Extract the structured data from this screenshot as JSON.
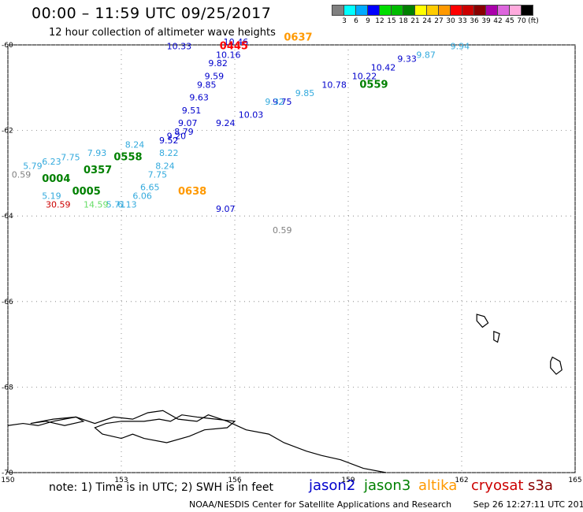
{
  "header": {
    "title": "00:00 – 11:59 UTC 09/25/2017",
    "subtitle": "12 hour collection of altimeter wave heights"
  },
  "legend": {
    "colors": [
      "#808080",
      "#00ffff",
      "#00aaff",
      "#0000ff",
      "#00dd00",
      "#00bb00",
      "#008000",
      "#ffff00",
      "#ffcc00",
      "#ff9900",
      "#ff0000",
      "#cc0000",
      "#880000",
      "#aa00aa",
      "#dd66dd",
      "#ffaadd",
      "#000000"
    ],
    "labels": [
      "3",
      "6",
      "9",
      "12",
      "15",
      "18",
      "21",
      "24",
      "27",
      "30",
      "33",
      "36",
      "39",
      "42",
      "45",
      "70",
      "(ft)"
    ]
  },
  "axes": {
    "lat_labels": [
      "-60",
      "-62",
      "-64",
      "-66",
      "-68",
      "-70"
    ],
    "lon_labels": [
      "150",
      "153",
      "156",
      "159",
      "162",
      "165"
    ]
  },
  "satellite_colors": {
    "jason2": "#0000cc",
    "jason3": "#008000",
    "altika": "#ff9900",
    "cryosat": "#cc0000",
    "s3a": "#880000",
    "cyan": "#33aadd",
    "light_green": "#66dd66",
    "gray": "#808080"
  },
  "observations": [
    {
      "lon": 154.2,
      "lat": -60.1,
      "text": "10.33",
      "color": "#0000cc"
    },
    {
      "lon": 155.7,
      "lat": -60.0,
      "text": "10.46",
      "color": "#0000cc"
    },
    {
      "lon": 155.5,
      "lat": -60.3,
      "text": "10.16",
      "color": "#0000cc"
    },
    {
      "lon": 155.3,
      "lat": -60.5,
      "text": "9.82",
      "color": "#0000cc"
    },
    {
      "lon": 155.2,
      "lat": -60.8,
      "text": "9.59",
      "color": "#0000cc"
    },
    {
      "lon": 155.0,
      "lat": -61.0,
      "text": "9.85",
      "color": "#0000cc"
    },
    {
      "lon": 154.8,
      "lat": -61.3,
      "text": "9.63",
      "color": "#0000cc"
    },
    {
      "lon": 154.6,
      "lat": -61.6,
      "text": "9.51",
      "color": "#0000cc"
    },
    {
      "lon": 154.5,
      "lat": -61.9,
      "text": "9.07",
      "color": "#0000cc"
    },
    {
      "lon": 154.4,
      "lat": -62.1,
      "text": "8.79",
      "color": "#0000cc"
    },
    {
      "lon": 154.2,
      "lat": -62.2,
      "text": "9.20",
      "color": "#0000cc"
    },
    {
      "lon": 154.0,
      "lat": -62.3,
      "text": "9.52",
      "color": "#0000cc"
    },
    {
      "lon": 155.5,
      "lat": -61.9,
      "text": "9.24",
      "color": "#0000cc"
    },
    {
      "lon": 156.1,
      "lat": -61.7,
      "text": "10.03",
      "color": "#0000cc"
    },
    {
      "lon": 157.0,
      "lat": -61.4,
      "text": "9.75",
      "color": "#0000cc"
    },
    {
      "lon": 158.3,
      "lat": -61.0,
      "text": "10.78",
      "color": "#0000cc"
    },
    {
      "lon": 159.1,
      "lat": -60.8,
      "text": "10.22",
      "color": "#0000cc"
    },
    {
      "lon": 159.6,
      "lat": -60.6,
      "text": "10.42",
      "color": "#0000cc"
    },
    {
      "lon": 160.3,
      "lat": -60.4,
      "text": "9.33",
      "color": "#0000cc"
    },
    {
      "lon": 155.5,
      "lat": -63.9,
      "text": "9.07",
      "color": "#0000cc"
    },
    {
      "lon": 154.0,
      "lat": -62.6,
      "text": "8.22",
      "color": "#33aadd"
    },
    {
      "lon": 153.9,
      "lat": -62.9,
      "text": "8.24",
      "color": "#33aadd"
    },
    {
      "lon": 153.7,
      "lat": -63.1,
      "text": "7.75",
      "color": "#33aadd"
    },
    {
      "lon": 153.5,
      "lat": -63.4,
      "text": "6.65",
      "color": "#33aadd"
    },
    {
      "lon": 153.3,
      "lat": -63.6,
      "text": "6.06",
      "color": "#33aadd"
    },
    {
      "lon": 152.9,
      "lat": -63.8,
      "text": "6.13",
      "color": "#33aadd"
    },
    {
      "lon": 152.6,
      "lat": -63.8,
      "text": "5.71",
      "color": "#33aadd"
    },
    {
      "lon": 150.9,
      "lat": -63.6,
      "text": "5.19",
      "color": "#33aadd"
    },
    {
      "lon": 150.4,
      "lat": -62.9,
      "text": "5.79",
      "color": "#33aadd"
    },
    {
      "lon": 150.9,
      "lat": -62.8,
      "text": "6.23",
      "color": "#33aadd"
    },
    {
      "lon": 151.4,
      "lat": -62.7,
      "text": "7.75",
      "color": "#33aadd"
    },
    {
      "lon": 152.1,
      "lat": -62.6,
      "text": "7.93",
      "color": "#33aadd"
    },
    {
      "lon": 153.1,
      "lat": -62.4,
      "text": "8.24",
      "color": "#33aadd"
    },
    {
      "lon": 156.8,
      "lat": -61.4,
      "text": "9.32",
      "color": "#33aadd"
    },
    {
      "lon": 157.6,
      "lat": -61.2,
      "text": "9.85",
      "color": "#33aadd"
    },
    {
      "lon": 160.8,
      "lat": -60.3,
      "text": "9.87",
      "color": "#33aadd"
    },
    {
      "lon": 161.7,
      "lat": -60.1,
      "text": "9.94",
      "color": "#33aadd"
    },
    {
      "lon": 151.0,
      "lat": -63.8,
      "text": "30.59",
      "color": "#cc0000"
    },
    {
      "lon": 152.0,
      "lat": -63.8,
      "text": "14.59",
      "color": "#66dd66"
    },
    {
      "lon": 150.1,
      "lat": -63.1,
      "text": "0.59",
      "color": "#808080"
    },
    {
      "lon": 157.0,
      "lat": -64.4,
      "text": "0.59",
      "color": "#808080"
    }
  ],
  "time_labels": [
    {
      "lon": 155.6,
      "lat": -60.1,
      "text": "0445",
      "color": "#ff0000"
    },
    {
      "lon": 157.3,
      "lat": -59.9,
      "text": "0637",
      "color": "#ff9900"
    },
    {
      "lon": 154.5,
      "lat": -63.5,
      "text": "0638",
      "color": "#ff9900"
    },
    {
      "lon": 151.7,
      "lat": -63.5,
      "text": "0005",
      "color": "#008000"
    },
    {
      "lon": 152.0,
      "lat": -63.0,
      "text": "0357",
      "color": "#008000"
    },
    {
      "lon": 150.9,
      "lat": -63.2,
      "text": "0004",
      "color": "#008000"
    },
    {
      "lon": 152.8,
      "lat": -62.7,
      "text": "0558",
      "color": "#008000"
    },
    {
      "lon": 159.3,
      "lat": -61.0,
      "text": "0559",
      "color": "#008000"
    }
  ],
  "islands": [
    [
      [
        152.0,
        -68.8
      ],
      [
        151.5,
        -68.9
      ],
      [
        151.0,
        -68.8
      ],
      [
        150.6,
        -68.85
      ],
      [
        151.2,
        -68.75
      ],
      [
        151.8,
        -68.7
      ]
    ],
    [
      [
        153.0,
        -68.8
      ],
      [
        153.6,
        -68.8
      ],
      [
        154.0,
        -68.75
      ],
      [
        154.3,
        -68.8
      ],
      [
        154.6,
        -68.65
      ],
      [
        155.0,
        -68.7
      ],
      [
        155.5,
        -68.75
      ],
      [
        156.0,
        -68.8
      ],
      [
        155.8,
        -68.95
      ],
      [
        155.2,
        -69.0
      ],
      [
        154.8,
        -69.15
      ],
      [
        154.2,
        -69.3
      ],
      [
        153.6,
        -69.2
      ],
      [
        153.3,
        -69.1
      ],
      [
        153.0,
        -69.2
      ],
      [
        152.5,
        -69.1
      ],
      [
        152.3,
        -68.95
      ],
      [
        152.6,
        -68.85
      ]
    ]
  ],
  "small_islands": [
    [
      [
        162.4,
        -66.3
      ],
      [
        162.6,
        -66.35
      ],
      [
        162.7,
        -66.5
      ],
      [
        162.55,
        -66.6
      ],
      [
        162.4,
        -66.45
      ]
    ],
    [
      [
        162.85,
        -66.7
      ],
      [
        163.0,
        -66.75
      ],
      [
        162.95,
        -66.95
      ],
      [
        162.85,
        -66.9
      ]
    ],
    [
      [
        164.4,
        -67.3
      ],
      [
        164.6,
        -67.4
      ],
      [
        164.65,
        -67.6
      ],
      [
        164.5,
        -67.7
      ],
      [
        164.35,
        -67.55
      ],
      [
        164.35,
        -67.4
      ]
    ]
  ],
  "note": {
    "text": "note:  1) Time is in UTC;  2) SWH is in feet"
  },
  "satellites": [
    {
      "name": "jason2",
      "color": "#0000cc"
    },
    {
      "name": "jason3",
      "color": "#008000"
    },
    {
      "name": "altika",
      "color": "#ff9900"
    },
    {
      "name": "cryosat",
      "color": "#cc0000"
    },
    {
      "name": "s3a",
      "color": "#880000"
    }
  ],
  "footer": {
    "credit": "NOAA/NESDIS Center for Satellite Applications and Research",
    "timestamp": "Sep 26 12:27:11 UTC 2017"
  }
}
